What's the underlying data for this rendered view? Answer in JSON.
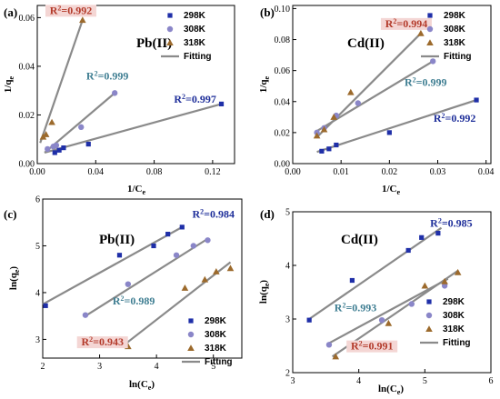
{
  "colors": {
    "s298": "#1f2fa8",
    "s308": "#8a86c8",
    "s318": "#9c6a2c",
    "fit": "#8a8a8a",
    "r2_red": "#b33a2a",
    "r2_teal": "#3f7e92",
    "r2_blue": "#1f2f9a",
    "label_bg": "#f4d6d4"
  },
  "chart_data": [
    {
      "type": "scatter",
      "panel": "(a)",
      "title": "Pb(II)",
      "xlabel": "1/C",
      "xlabel_sub": "e",
      "ylabel": "1/q",
      "ylabel_sub": "e",
      "xlim": [
        0,
        0.135
      ],
      "ylim": [
        0,
        0.065
      ],
      "xticks": [
        0.0,
        0.04,
        0.08,
        0.12
      ],
      "xtick_labels": [
        "0.00",
        "0.04",
        "0.08",
        "0.12"
      ],
      "yticks": [
        0,
        0.02,
        0.04,
        0.06
      ],
      "ytick_labels": [
        "0.00",
        "0.02",
        "0.04",
        "0.06"
      ],
      "legend": [
        "298K",
        "308K",
        "318K",
        "Fitting"
      ],
      "series": [
        {
          "name": "298K",
          "marker": "square",
          "color": "s298",
          "x": [
            0.012,
            0.015,
            0.018,
            0.035,
            0.126
          ],
          "y": [
            0.0045,
            0.0055,
            0.0065,
            0.008,
            0.0245
          ],
          "fit": [
            [
              0.005,
              0.0045
            ],
            [
              0.126,
              0.0245
            ]
          ],
          "r2": "0.997",
          "r2_color": "r2_blue",
          "r2_pos": [
            0.108,
            0.025
          ]
        },
        {
          "name": "308K",
          "marker": "circle",
          "color": "s308",
          "x": [
            0.007,
            0.011,
            0.013,
            0.03,
            0.053
          ],
          "y": [
            0.006,
            0.007,
            0.0075,
            0.015,
            0.029
          ],
          "fit": [
            [
              0.005,
              0.0045
            ],
            [
              0.053,
              0.029
            ]
          ],
          "r2": "0.999",
          "r2_color": "r2_teal",
          "r2_pos": [
            0.048,
            0.0345
          ]
        },
        {
          "name": "318K",
          "marker": "triangle",
          "color": "s318",
          "x": [
            0.004,
            0.006,
            0.01,
            0.031
          ],
          "y": [
            0.011,
            0.012,
            0.017,
            0.059
          ],
          "fit": [
            [
              0.002,
              0.0085
            ],
            [
              0.031,
              0.059
            ]
          ],
          "r2": "0.992",
          "r2_color": "r2_red",
          "r2_pos": [
            0.023,
            0.0615
          ]
        }
      ]
    },
    {
      "type": "scatter",
      "panel": "(b)",
      "title": "Cd(II)",
      "xlabel": "1/C",
      "xlabel_sub": "e",
      "ylabel": "1/q",
      "ylabel_sub": "e",
      "xlim": [
        0,
        0.041
      ],
      "ylim": [
        0,
        0.102
      ],
      "xticks": [
        0,
        0.01,
        0.02,
        0.03,
        0.04
      ],
      "xtick_labels": [
        "0.00",
        "0.01",
        "0.02",
        "0.03",
        "0.04"
      ],
      "yticks": [
        0,
        0.02,
        0.04,
        0.06,
        0.08,
        0.1
      ],
      "ytick_labels": [
        "0.00",
        "0.02",
        "0.04",
        "0.06",
        "0.08",
        "0.10"
      ],
      "legend": [
        "298K",
        "308K",
        "318K",
        "Fitting"
      ],
      "series": [
        {
          "name": "298K",
          "marker": "square",
          "color": "s298",
          "x": [
            0.006,
            0.0075,
            0.009,
            0.02,
            0.038
          ],
          "y": [
            0.008,
            0.0095,
            0.012,
            0.02,
            0.041
          ],
          "fit": [
            [
              0.005,
              0.0075
            ],
            [
              0.038,
              0.041
            ]
          ],
          "r2": "0.992",
          "r2_color": "r2_blue",
          "r2_pos": [
            0.0335,
            0.027
          ]
        },
        {
          "name": "308K",
          "marker": "circle",
          "color": "s308",
          "x": [
            0.005,
            0.0065,
            0.009,
            0.0135,
            0.029
          ],
          "y": [
            0.02,
            0.023,
            0.031,
            0.039,
            0.066
          ],
          "fit": [
            [
              0.005,
              0.021
            ],
            [
              0.029,
              0.066
            ]
          ],
          "r2": "0.999",
          "r2_color": "r2_teal",
          "r2_pos": [
            0.0275,
            0.05
          ]
        },
        {
          "name": "318K",
          "marker": "triangle",
          "color": "s318",
          "x": [
            0.005,
            0.0065,
            0.0085,
            0.012,
            0.0265
          ],
          "y": [
            0.018,
            0.022,
            0.03,
            0.046,
            0.084
          ],
          "fit": [
            [
              0.005,
              0.017
            ],
            [
              0.0265,
              0.084
            ]
          ],
          "r2": "0.994",
          "r2_color": "r2_red",
          "r2_pos": [
            0.0235,
            0.088
          ]
        }
      ]
    },
    {
      "type": "scatter",
      "panel": "(c)",
      "title": "Pb(II)",
      "xlabel": "ln(C",
      "xlabel_sub": "e",
      "xlabel_end": ")",
      "ylabel": "ln(q",
      "ylabel_sub": "e",
      "ylabel_end": ")",
      "xlim": [
        2,
        5.5
      ],
      "ylim": [
        2.6,
        6
      ],
      "xticks": [
        2,
        3,
        4,
        5
      ],
      "xtick_labels": [
        "2",
        "3",
        "4",
        "5"
      ],
      "yticks": [
        3,
        4,
        5,
        6
      ],
      "ytick_labels": [
        "3",
        "4",
        "5",
        "6"
      ],
      "legend": [
        "298K",
        "308K",
        "318K",
        "Fitting"
      ],
      "series": [
        {
          "name": "298K",
          "marker": "square",
          "color": "s298",
          "x": [
            2.05,
            3.35,
            3.95,
            4.2,
            4.45
          ],
          "y": [
            3.72,
            4.8,
            5.0,
            5.25,
            5.4
          ],
          "fit": [
            [
              2.0,
              3.75
            ],
            [
              4.45,
              5.4
            ]
          ],
          "r2": "0.984",
          "r2_color": "r2_blue",
          "r2_pos": [
            5.0,
            5.6
          ]
        },
        {
          "name": "308K",
          "marker": "circle",
          "color": "s308",
          "x": [
            2.75,
            3.5,
            4.35,
            4.65,
            4.9
          ],
          "y": [
            3.52,
            4.18,
            4.8,
            5.0,
            5.12
          ],
          "fit": [
            [
              2.75,
              3.5
            ],
            [
              4.9,
              5.15
            ]
          ],
          "r2": "0.989",
          "r2_color": "r2_teal",
          "r2_pos": [
            3.6,
            3.75
          ]
        },
        {
          "name": "318K",
          "marker": "triangle",
          "color": "s318",
          "x": [
            3.5,
            4.5,
            4.85,
            5.05,
            5.3
          ],
          "y": [
            2.85,
            4.1,
            4.28,
            4.45,
            4.52
          ],
          "fit": [
            [
              3.45,
              2.9
            ],
            [
              5.3,
              4.65
            ]
          ],
          "r2": "0.943",
          "r2_color": "r2_red",
          "r2_pos": [
            3.05,
            2.87
          ]
        }
      ]
    },
    {
      "type": "scatter",
      "panel": "(d)",
      "title": "Cd(II)",
      "xlabel": "ln(C",
      "xlabel_sub": "e",
      "xlabel_end": ")",
      "ylabel": "ln(q",
      "ylabel_sub": "e",
      "ylabel_end": ")",
      "xlim": [
        3,
        6
      ],
      "ylim": [
        2,
        5
      ],
      "xticks": [
        3,
        4,
        5,
        6
      ],
      "xtick_labels": [
        "3",
        "4",
        "5",
        "6"
      ],
      "yticks": [
        2,
        3,
        4,
        5
      ],
      "ytick_labels": [
        "2",
        "3",
        "4",
        "5"
      ],
      "legend": [
        "298K",
        "308K",
        "318K",
        "Fitting"
      ],
      "series": [
        {
          "name": "298K",
          "marker": "square",
          "color": "s298",
          "x": [
            3.25,
            3.9,
            4.75,
            4.95,
            5.2
          ],
          "y": [
            2.98,
            3.72,
            4.28,
            4.52,
            4.6
          ],
          "fit": [
            [
              3.25,
              3.0
            ],
            [
              5.25,
              4.7
            ]
          ],
          "r2": "0.985",
          "r2_color": "r2_blue",
          "r2_pos": [
            5.4,
            4.72
          ]
        },
        {
          "name": "308K",
          "marker": "circle",
          "color": "s308",
          "x": [
            3.55,
            4.35,
            4.8,
            5.3
          ],
          "y": [
            2.52,
            2.98,
            3.28,
            3.62
          ],
          "fit": [
            [
              3.55,
              2.55
            ],
            [
              5.35,
              3.75
            ]
          ],
          "r2": "0.993",
          "r2_color": "r2_teal",
          "r2_pos": [
            3.95,
            3.14
          ]
        },
        {
          "name": "318K",
          "marker": "triangle",
          "color": "s318",
          "x": [
            3.65,
            4.45,
            5.0,
            5.3,
            5.5
          ],
          "y": [
            2.3,
            2.92,
            3.62,
            3.7,
            3.87
          ],
          "fit": [
            [
              3.6,
              2.3
            ],
            [
              5.5,
              3.9
            ]
          ],
          "r2": "0.991",
          "r2_color": "r2_red",
          "r2_pos": [
            4.2,
            2.43
          ]
        }
      ]
    }
  ]
}
